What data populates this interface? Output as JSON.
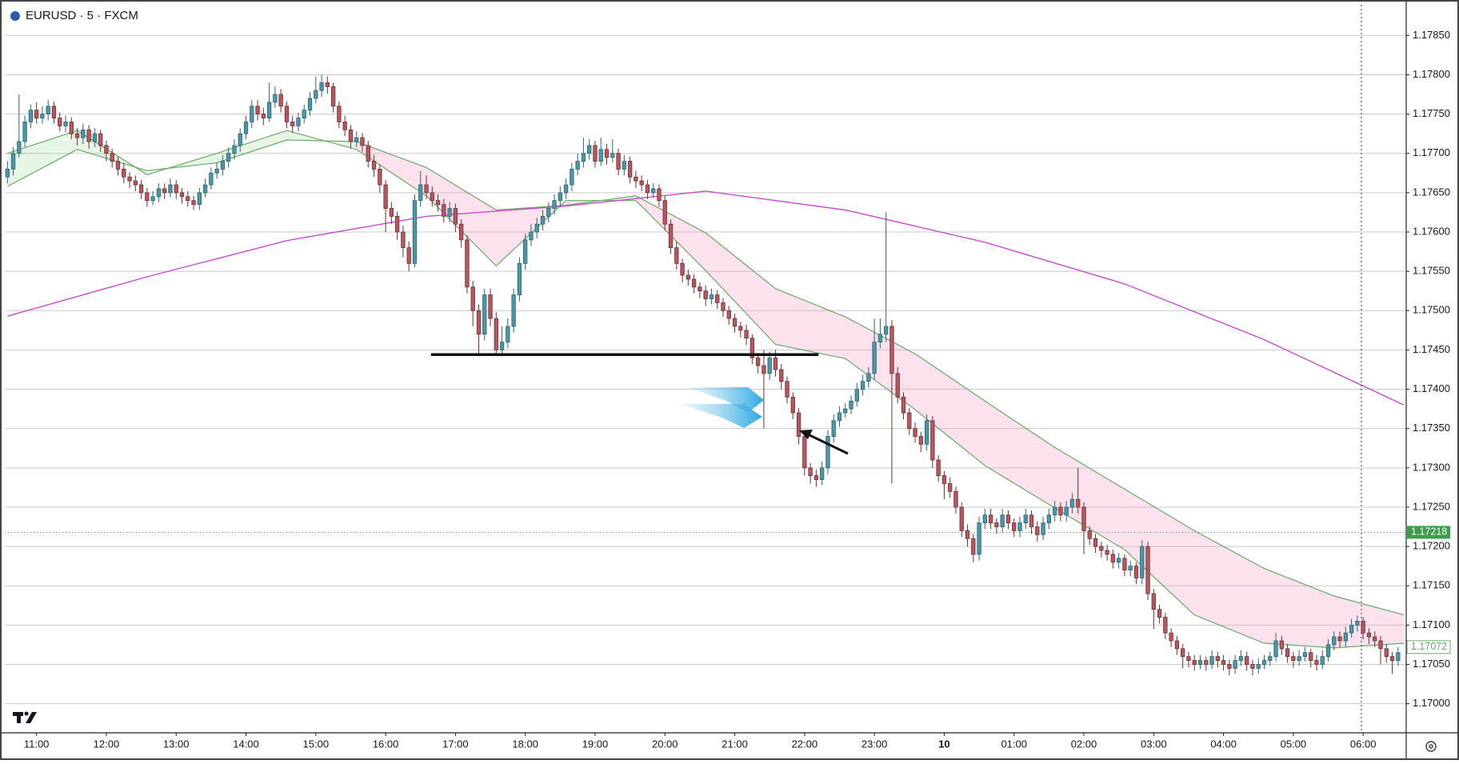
{
  "chart_data": {
    "type": "candlestick",
    "title": "EURUSD · 5 · FXCM",
    "up_color": "#4b97a6",
    "up_edge": "#2d6470",
    "down_color": "#b8575d",
    "down_edge": "#6b2f33",
    "xlim": [
      -0.45,
      240.4
    ],
    "ylim": [
      1.16963,
      1.17889
    ],
    "grid": "horizontal",
    "yticks": [
      {
        "value": 1.17,
        "label": "1.17000"
      },
      {
        "value": 1.1705,
        "label": "1.17050"
      },
      {
        "value": 1.171,
        "label": "1.17100"
      },
      {
        "value": 1.1715,
        "label": "1.17150"
      },
      {
        "value": 1.172,
        "label": "1.17200"
      },
      {
        "value": 1.1725,
        "label": "1.17250"
      },
      {
        "value": 1.173,
        "label": "1.17300"
      },
      {
        "value": 1.1735,
        "label": "1.17350"
      },
      {
        "value": 1.174,
        "label": "1.17400"
      },
      {
        "value": 1.1745,
        "label": "1.17450"
      },
      {
        "value": 1.175,
        "label": "1.17500"
      },
      {
        "value": 1.1755,
        "label": "1.17550"
      },
      {
        "value": 1.176,
        "label": "1.17600"
      },
      {
        "value": 1.1765,
        "label": "1.17650"
      },
      {
        "value": 1.177,
        "label": "1.17700"
      },
      {
        "value": 1.1775,
        "label": "1.17750"
      },
      {
        "value": 1.178,
        "label": "1.17800"
      },
      {
        "value": 1.1785,
        "label": "1.17850"
      }
    ],
    "xticks": [
      {
        "value": 5,
        "label": "11:00"
      },
      {
        "value": 17,
        "label": "12:00"
      },
      {
        "value": 29,
        "label": "13:00"
      },
      {
        "value": 41,
        "label": "14:00"
      },
      {
        "value": 53,
        "label": "15:00"
      },
      {
        "value": 65,
        "label": "16:00"
      },
      {
        "value": 77,
        "label": "17:00"
      },
      {
        "value": 89,
        "label": "18:00"
      },
      {
        "value": 101,
        "label": "19:00"
      },
      {
        "value": 113,
        "label": "20:00"
      },
      {
        "value": 125,
        "label": "21:00"
      },
      {
        "value": 137,
        "label": "22:00"
      },
      {
        "value": 149,
        "label": "23:00"
      },
      {
        "value": 161,
        "label": "10"
      },
      {
        "value": 173,
        "label": "01:00"
      },
      {
        "value": 185,
        "label": "02:00"
      },
      {
        "value": 197,
        "label": "03:00"
      },
      {
        "value": 209,
        "label": "04:00"
      },
      {
        "value": 221,
        "label": "05:00"
      },
      {
        "value": 233,
        "label": "06:00"
      }
    ],
    "open": [
      1.1767,
      1.1768,
      1.177,
      1.17715,
      1.1774,
      1.17755,
      1.17745,
      1.1775,
      1.1776,
      1.17745,
      1.17735,
      1.1774,
      1.17725,
      1.1772,
      1.1773,
      1.17715,
      1.17725,
      1.1771,
      1.177,
      1.1769,
      1.1768,
      1.1767,
      1.17665,
      1.1766,
      1.1765,
      1.1764,
      1.17645,
      1.17655,
      1.1765,
      1.1766,
      1.1765,
      1.17645,
      1.1764,
      1.17635,
      1.1765,
      1.1766,
      1.17675,
      1.1768,
      1.1769,
      1.177,
      1.1771,
      1.17725,
      1.1774,
      1.1776,
      1.1775,
      1.17745,
      1.17765,
      1.17775,
      1.1776,
      1.1774,
      1.17735,
      1.17745,
      1.17755,
      1.1777,
      1.1778,
      1.1779,
      1.17785,
      1.1776,
      1.1774,
      1.1773,
      1.17715,
      1.1772,
      1.1771,
      1.1769,
      1.1768,
      1.1766,
      1.1763,
      1.1762,
      1.176,
      1.1758,
      1.1756,
      1.1764,
      1.1766,
      1.1765,
      1.1764,
      1.17635,
      1.1762,
      1.1763,
      1.1761,
      1.1759,
      1.1753,
      1.175,
      1.1747,
      1.1752,
      1.1749,
      1.1745,
      1.1746,
      1.1748,
      1.1752,
      1.1756,
      1.1759,
      1.176,
      1.1761,
      1.1762,
      1.1763,
      1.1764,
      1.1765,
      1.1766,
      1.1768,
      1.1769,
      1.177,
      1.1771,
      1.1769,
      1.17705,
      1.17695,
      1.177,
      1.1768,
      1.1769,
      1.1767,
      1.17665,
      1.1766,
      1.1765,
      1.17655,
      1.1764,
      1.1761,
      1.1758,
      1.1756,
      1.17545,
      1.1754,
      1.1753,
      1.17525,
      1.17515,
      1.1752,
      1.1751,
      1.175,
      1.1749,
      1.1748,
      1.17475,
      1.17465,
      1.1744,
      1.1743,
      1.1742,
      1.1744,
      1.17425,
      1.1741,
      1.1739,
      1.1737,
      1.1734,
      1.173,
      1.1729,
      1.17285,
      1.173,
      1.1734,
      1.1736,
      1.1737,
      1.17375,
      1.17385,
      1.174,
      1.1741,
      1.1742,
      1.1746,
      1.1747,
      1.1748,
      1.1742,
      1.1739,
      1.1737,
      1.1735,
      1.1734,
      1.1733,
      1.1736,
      1.1731,
      1.1729,
      1.1728,
      1.1727,
      1.1725,
      1.1722,
      1.1721,
      1.1719,
      1.1723,
      1.1724,
      1.1723,
      1.17225,
      1.1724,
      1.1723,
      1.1722,
      1.1723,
      1.1724,
      1.17225,
      1.17215,
      1.1723,
      1.1724,
      1.1725,
      1.1724,
      1.1725,
      1.1726,
      1.1725,
      1.1722,
      1.1721,
      1.172,
      1.17195,
      1.1719,
      1.1718,
      1.17185,
      1.1717,
      1.17175,
      1.1716,
      1.172,
      1.1714,
      1.1712,
      1.1711,
      1.1709,
      1.1708,
      1.1707,
      1.1706,
      1.17055,
      1.1705,
      1.17055,
      1.1705,
      1.1706,
      1.17055,
      1.1705,
      1.17045,
      1.17055,
      1.1706,
      1.1705,
      1.17045,
      1.1705,
      1.17055,
      1.1706,
      1.1708,
      1.1707,
      1.1706,
      1.17055,
      1.1706,
      1.17065,
      1.17055,
      1.1705,
      1.1706,
      1.17075,
      1.17085,
      1.1708,
      1.1709,
      1.171,
      1.17105,
      1.1709,
      1.17085,
      1.1708,
      1.1707,
      1.1706,
      1.17055
    ],
    "high": [
      1.1769,
      1.17708,
      1.17775,
      1.17748,
      1.17762,
      1.17765,
      1.1776,
      1.17768,
      1.17766,
      1.17752,
      1.17748,
      1.17746,
      1.17732,
      1.17738,
      1.17736,
      1.17732,
      1.1773,
      1.17716,
      1.17706,
      1.17696,
      1.17688,
      1.17676,
      1.17672,
      1.17666,
      1.17656,
      1.17652,
      1.17662,
      1.17662,
      1.17668,
      1.17666,
      1.17656,
      1.17652,
      1.17646,
      1.17656,
      1.17668,
      1.17682,
      1.17688,
      1.17698,
      1.17708,
      1.17718,
      1.17732,
      1.17748,
      1.17768,
      1.17768,
      1.17758,
      1.1779,
      1.17785,
      1.17782,
      1.17766,
      1.17748,
      1.17752,
      1.17762,
      1.17778,
      1.17798,
      1.178,
      1.17798,
      1.1779,
      1.17766,
      1.17748,
      1.17736,
      1.17728,
      1.17726,
      1.17716,
      1.17698,
      1.17686,
      1.17666,
      1.17638,
      1.17626,
      1.17608,
      1.17588,
      1.17648,
      1.17678,
      1.17672,
      1.17658,
      1.17648,
      1.17642,
      1.17638,
      1.17636,
      1.17616,
      1.17596,
      1.17538,
      1.17508,
      1.17528,
      1.17528,
      1.17498,
      1.1748,
      1.1749,
      1.17528,
      1.17568,
      1.17598,
      1.1761,
      1.17618,
      1.17628,
      1.17638,
      1.17648,
      1.17658,
      1.17668,
      1.17688,
      1.177,
      1.1772,
      1.17718,
      1.17716,
      1.1772,
      1.17712,
      1.17718,
      1.17706,
      1.17698,
      1.17696,
      1.17678,
      1.17672,
      1.17666,
      1.17662,
      1.1766,
      1.17646,
      1.17616,
      1.17588,
      1.17566,
      1.17552,
      1.17546,
      1.17536,
      1.17532,
      1.17528,
      1.17526,
      1.17516,
      1.17506,
      1.17496,
      1.17486,
      1.17482,
      1.1747,
      1.17446,
      1.1745,
      1.17448,
      1.1745,
      1.17432,
      1.17416,
      1.17396,
      1.17376,
      1.17346,
      1.17306,
      1.17298,
      1.17308,
      1.17348,
      1.17368,
      1.17378,
      1.17382,
      1.17392,
      1.17408,
      1.17418,
      1.17428,
      1.1749,
      1.1749,
      1.17625,
      1.17488,
      1.17428,
      1.17396,
      1.17376,
      1.17358,
      1.17346,
      1.17368,
      1.17366,
      1.17316,
      1.17296,
      1.17288,
      1.17276,
      1.17256,
      1.17228,
      1.17216,
      1.17238,
      1.17248,
      1.17248,
      1.17236,
      1.17248,
      1.17246,
      1.17236,
      1.17238,
      1.17248,
      1.17246,
      1.17232,
      1.17238,
      1.17248,
      1.17258,
      1.17256,
      1.17258,
      1.17268,
      1.173,
      1.17256,
      1.17226,
      1.17216,
      1.17206,
      1.17202,
      1.17196,
      1.17192,
      1.1719,
      1.17182,
      1.1718,
      1.17208,
      1.17206,
      1.17146,
      1.17126,
      1.17116,
      1.17096,
      1.17086,
      1.17076,
      1.17066,
      1.17062,
      1.17062,
      1.1706,
      1.17068,
      1.17066,
      1.17062,
      1.17056,
      1.17062,
      1.17068,
      1.17066,
      1.17056,
      1.17058,
      1.17062,
      1.17066,
      1.1709,
      1.17086,
      1.17076,
      1.17066,
      1.17068,
      1.17072,
      1.1707,
      1.17062,
      1.17068,
      1.17082,
      1.17092,
      1.17092,
      1.17098,
      1.17108,
      1.17112,
      1.1711,
      1.17096,
      1.17092,
      1.17086,
      1.17076,
      1.17066,
      1.17072
    ],
    "low": [
      1.17662,
      1.17672,
      1.17695,
      1.17708,
      1.17732,
      1.17738,
      1.17738,
      1.17742,
      1.17738,
      1.17728,
      1.17727,
      1.17718,
      1.1771,
      1.17712,
      1.17706,
      1.17708,
      1.17702,
      1.1769,
      1.17682,
      1.17672,
      1.17662,
      1.17656,
      1.17652,
      1.17642,
      1.17632,
      1.17634,
      1.17638,
      1.17642,
      1.17644,
      1.17642,
      1.17636,
      1.17632,
      1.17628,
      1.17628,
      1.17644,
      1.17654,
      1.17668,
      1.17672,
      1.17682,
      1.17692,
      1.17702,
      1.17718,
      1.17732,
      1.17742,
      1.17736,
      1.1774,
      1.17758,
      1.17752,
      1.17732,
      1.17726,
      1.17728,
      1.17738,
      1.17748,
      1.17764,
      1.17772,
      1.17776,
      1.17752,
      1.17732,
      1.17722,
      1.17706,
      1.17708,
      1.17702,
      1.17682,
      1.1767,
      1.1765,
      1.176,
      1.1761,
      1.1759,
      1.17568,
      1.1755,
      1.17555,
      1.17632,
      1.17642,
      1.17632,
      1.17626,
      1.17612,
      1.17612,
      1.176,
      1.1758,
      1.17522,
      1.1748,
      1.17445,
      1.17462,
      1.1748,
      1.17442,
      1.17442,
      1.17452,
      1.17472,
      1.17512,
      1.17552,
      1.17582,
      1.17592,
      1.17602,
      1.17612,
      1.17622,
      1.17632,
      1.17642,
      1.17652,
      1.17672,
      1.17682,
      1.17692,
      1.17682,
      1.17684,
      1.17686,
      1.17688,
      1.17672,
      1.17672,
      1.17662,
      1.17656,
      1.17652,
      1.17642,
      1.17644,
      1.17632,
      1.17602,
      1.17572,
      1.17552,
      1.17536,
      1.17532,
      1.17522,
      1.17516,
      1.17506,
      1.17508,
      1.17502,
      1.17492,
      1.17482,
      1.17472,
      1.17466,
      1.17456,
      1.17432,
      1.1742,
      1.1735,
      1.17412,
      1.17416,
      1.174,
      1.17382,
      1.17362,
      1.1733,
      1.1729,
      1.1728,
      1.17276,
      1.17278,
      1.17292,
      1.17332,
      1.17352,
      1.17364,
      1.17368,
      1.17378,
      1.17392,
      1.17402,
      1.17412,
      1.17452,
      1.1746,
      1.1728,
      1.17382,
      1.17362,
      1.17342,
      1.17332,
      1.1732,
      1.17322,
      1.173,
      1.17282,
      1.1726,
      1.17262,
      1.17242,
      1.17212,
      1.172,
      1.1718,
      1.17182,
      1.17222,
      1.17222,
      1.17216,
      1.17218,
      1.17222,
      1.17212,
      1.17212,
      1.17222,
      1.17216,
      1.17206,
      1.17208,
      1.17222,
      1.17232,
      1.17232,
      1.17232,
      1.17242,
      1.17242,
      1.1719,
      1.17202,
      1.17192,
      1.17186,
      1.17182,
      1.17172,
      1.17172,
      1.17162,
      1.17162,
      1.17152,
      1.17152,
      1.17132,
      1.17095,
      1.17102,
      1.17082,
      1.17072,
      1.17062,
      1.17045,
      1.17046,
      1.17042,
      1.17044,
      1.17042,
      1.17044,
      1.17046,
      1.17042,
      1.17036,
      1.17038,
      1.17048,
      1.17042,
      1.17036,
      1.17038,
      1.17044,
      1.17048,
      1.17054,
      1.17062,
      1.17052,
      1.17046,
      1.17048,
      1.17054,
      1.17046,
      1.17042,
      1.17044,
      1.17054,
      1.17068,
      1.17072,
      1.17072,
      1.17084,
      1.17092,
      1.17082,
      1.17076,
      1.17072,
      1.1705,
      1.17052,
      1.17038,
      1.17048
    ],
    "close": [
      1.1768,
      1.177,
      1.17715,
      1.1774,
      1.17755,
      1.17745,
      1.1775,
      1.1776,
      1.17745,
      1.17735,
      1.1774,
      1.17725,
      1.1772,
      1.1773,
      1.17715,
      1.17725,
      1.1771,
      1.177,
      1.1769,
      1.1768,
      1.1767,
      1.17665,
      1.1766,
      1.1765,
      1.1764,
      1.17645,
      1.17655,
      1.1765,
      1.1766,
      1.1765,
      1.17645,
      1.1764,
      1.17635,
      1.1765,
      1.1766,
      1.17675,
      1.1768,
      1.1769,
      1.177,
      1.1771,
      1.17725,
      1.1774,
      1.1776,
      1.1775,
      1.17745,
      1.17765,
      1.17775,
      1.1776,
      1.1774,
      1.17735,
      1.17745,
      1.17755,
      1.1777,
      1.1778,
      1.1779,
      1.17785,
      1.1776,
      1.1774,
      1.1773,
      1.17715,
      1.1772,
      1.1771,
      1.1769,
      1.1768,
      1.1766,
      1.1763,
      1.1762,
      1.176,
      1.1758,
      1.1756,
      1.1764,
      1.1766,
      1.1765,
      1.1764,
      1.17635,
      1.1762,
      1.1763,
      1.1761,
      1.1759,
      1.1753,
      1.175,
      1.1747,
      1.1752,
      1.1749,
      1.1745,
      1.1746,
      1.1748,
      1.1752,
      1.1756,
      1.1759,
      1.176,
      1.1761,
      1.1762,
      1.1763,
      1.1764,
      1.1765,
      1.1766,
      1.1768,
      1.1769,
      1.177,
      1.1771,
      1.1769,
      1.17705,
      1.17695,
      1.177,
      1.1768,
      1.1769,
      1.1767,
      1.17665,
      1.1766,
      1.1765,
      1.17655,
      1.1764,
      1.1761,
      1.1758,
      1.1756,
      1.17545,
      1.1754,
      1.1753,
      1.17525,
      1.17515,
      1.1752,
      1.1751,
      1.175,
      1.1749,
      1.1748,
      1.17475,
      1.17465,
      1.1744,
      1.1743,
      1.1742,
      1.1744,
      1.17425,
      1.1741,
      1.1739,
      1.1737,
      1.1734,
      1.173,
      1.1729,
      1.17285,
      1.173,
      1.1734,
      1.1736,
      1.1737,
      1.17375,
      1.17385,
      1.174,
      1.1741,
      1.1742,
      1.1746,
      1.1747,
      1.1748,
      1.1742,
      1.1739,
      1.1737,
      1.1735,
      1.1734,
      1.1733,
      1.1736,
      1.1731,
      1.1729,
      1.1728,
      1.1727,
      1.1725,
      1.1722,
      1.1721,
      1.1719,
      1.1723,
      1.1724,
      1.1723,
      1.17225,
      1.1724,
      1.1723,
      1.1722,
      1.1723,
      1.1724,
      1.17225,
      1.17215,
      1.1723,
      1.1724,
      1.1725,
      1.1724,
      1.1725,
      1.1726,
      1.1725,
      1.1722,
      1.1721,
      1.172,
      1.17195,
      1.1719,
      1.1718,
      1.17185,
      1.1717,
      1.17175,
      1.1716,
      1.172,
      1.1714,
      1.1712,
      1.1711,
      1.1709,
      1.1708,
      1.1707,
      1.1706,
      1.17055,
      1.1705,
      1.17055,
      1.1705,
      1.1706,
      1.17055,
      1.1705,
      1.17045,
      1.17055,
      1.1706,
      1.1705,
      1.17045,
      1.1705,
      1.17055,
      1.1706,
      1.1708,
      1.1707,
      1.1706,
      1.17055,
      1.1706,
      1.17065,
      1.17055,
      1.1705,
      1.1706,
      1.17075,
      1.17085,
      1.1708,
      1.1709,
      1.171,
      1.17105,
      1.1709,
      1.17085,
      1.1708,
      1.1707,
      1.1706,
      1.17055,
      1.17065
    ],
    "ma_long": {
      "color": "#c44fc4",
      "x": [
        0,
        24,
        48,
        72,
        96,
        120,
        144,
        168,
        192,
        216,
        240
      ],
      "values": [
        1.17493,
        1.17543,
        1.17589,
        1.1762,
        1.17633,
        1.17652,
        1.17628,
        1.17587,
        1.17534,
        1.17463,
        1.1738
      ]
    },
    "ema_band": {
      "line_color": "#6aa86a",
      "up_fill": "rgba(120,200,120,0.18)",
      "down_fill": "rgba(240,150,185,0.28)",
      "x": [
        0,
        12,
        24,
        36,
        48,
        60,
        72,
        84,
        96,
        108,
        120,
        132,
        144,
        156,
        168,
        180,
        192,
        204,
        216,
        228,
        240
      ],
      "fast": [
        1.177,
        1.17729,
        1.17673,
        1.177,
        1.17729,
        1.17705,
        1.17646,
        1.17557,
        1.1764,
        1.1764,
        1.17551,
        1.17457,
        1.17439,
        1.17374,
        1.17303,
        1.17249,
        1.17196,
        1.17113,
        1.17077,
        1.17071,
        1.17077
      ],
      "slow": [
        1.17658,
        1.17705,
        1.17678,
        1.17688,
        1.17717,
        1.17715,
        1.17682,
        1.17628,
        1.17634,
        1.17646,
        1.17599,
        1.17528,
        1.17492,
        1.17445,
        1.17385,
        1.17326,
        1.17273,
        1.1722,
        1.17172,
        1.17137,
        1.17113
      ]
    },
    "support_line": {
      "value": 1.17444,
      "x": [
        72.8,
        139.4
      ],
      "color": "#111111"
    },
    "last_price": {
      "value": 1.17218,
      "color": "#3e9c4c"
    },
    "ema_price": {
      "value": 1.17072,
      "color": "#6aa86a"
    }
  }
}
